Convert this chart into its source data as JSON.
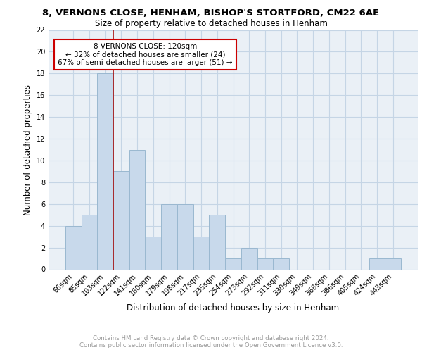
{
  "title_line1": "8, VERNONS CLOSE, HENHAM, BISHOP'S STORTFORD, CM22 6AE",
  "title_line2": "Size of property relative to detached houses in Henham",
  "xlabel": "Distribution of detached houses by size in Henham",
  "ylabel": "Number of detached properties",
  "categories": [
    "66sqm",
    "85sqm",
    "103sqm",
    "122sqm",
    "141sqm",
    "160sqm",
    "179sqm",
    "198sqm",
    "217sqm",
    "235sqm",
    "254sqm",
    "273sqm",
    "292sqm",
    "311sqm",
    "330sqm",
    "349sqm",
    "368sqm",
    "386sqm",
    "405sqm",
    "424sqm",
    "443sqm"
  ],
  "values": [
    4,
    5,
    18,
    9,
    11,
    3,
    6,
    6,
    3,
    5,
    1,
    2,
    1,
    1,
    0,
    0,
    0,
    0,
    0,
    1,
    1
  ],
  "bar_color": "#c8d9eb",
  "bar_edge_color": "#9ab8d0",
  "vline_color": "#aa1111",
  "vline_x_index": 2,
  "annotation_text": "8 VERNONS CLOSE: 120sqm\n← 32% of detached houses are smaller (24)\n67% of semi-detached houses are larger (51) →",
  "annotation_box_edge_color": "#cc0000",
  "ylim": [
    0,
    22
  ],
  "yticks": [
    0,
    2,
    4,
    6,
    8,
    10,
    12,
    14,
    16,
    18,
    20,
    22
  ],
  "grid_color": "#c5d5e5",
  "background_color": "#eaf0f6",
  "footer_text": "Contains HM Land Registry data © Crown copyright and database right 2024.\nContains public sector information licensed under the Open Government Licence v3.0.",
  "title_fontsize": 9.5,
  "subtitle_fontsize": 8.5,
  "tick_fontsize": 7,
  "ylabel_fontsize": 8.5,
  "xlabel_fontsize": 8.5,
  "annotation_fontsize": 7.5,
  "footer_fontsize": 6.2
}
